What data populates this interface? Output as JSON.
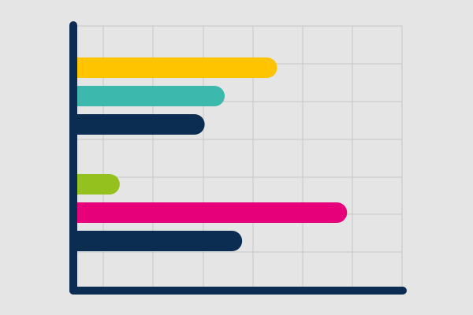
{
  "colors": {
    "background": "#e5e5e5",
    "grid": "#c6c6c6",
    "axis": "#0b2d52"
  },
  "chart_data": {
    "type": "bar",
    "orientation": "horizontal",
    "grid": true,
    "xlim": [
      0,
      6.5
    ],
    "groups": [
      {
        "bars": [
          {
            "value": 4.0,
            "color": "#ffc400"
          },
          {
            "value": 2.95,
            "color": "#3cb8ad"
          },
          {
            "value": 2.55,
            "color": "#0b2d52"
          }
        ]
      },
      {
        "bars": [
          {
            "value": 0.85,
            "color": "#95c11f"
          },
          {
            "value": 5.4,
            "color": "#e6007a"
          },
          {
            "value": 3.3,
            "color": "#0b2d52"
          }
        ]
      }
    ]
  }
}
